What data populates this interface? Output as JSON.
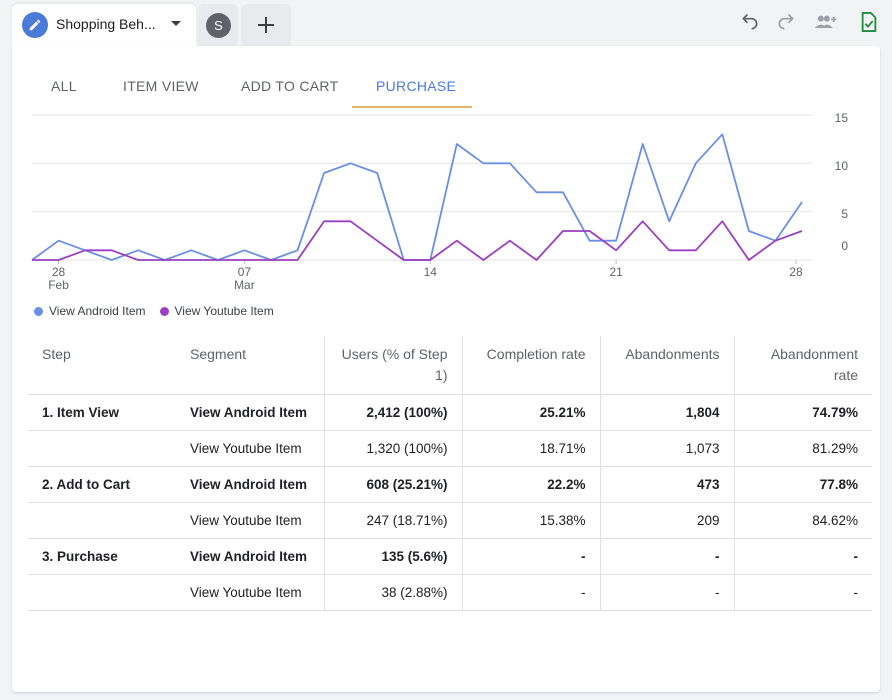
{
  "tabs": {
    "active_title": "Shopping Beh...",
    "secondary_initial": "S"
  },
  "toolbar": {
    "icons": [
      "undo-icon",
      "redo-icon",
      "share-users-icon",
      "save-document-icon"
    ]
  },
  "segment_tabs": [
    {
      "label": "ALL",
      "active": false
    },
    {
      "label": "ITEM VIEW",
      "active": false
    },
    {
      "label": "ADD TO CART",
      "active": false
    },
    {
      "label": "PURCHASE",
      "active": true
    }
  ],
  "colors": {
    "android": "#6a8fe6",
    "youtube": "#9b3fc1",
    "accent": "#4a7bd9",
    "tab_underline": "#e1b46a"
  },
  "chart_data": {
    "type": "line",
    "x_tick_labels": [
      {
        "day": "28",
        "month": "Feb"
      },
      {
        "day": "07",
        "month": "Mar"
      },
      {
        "day": "14",
        "month": ""
      },
      {
        "day": "21",
        "month": ""
      },
      {
        "day": "28",
        "month": ""
      }
    ],
    "y_tick_labels": [
      "15",
      "10",
      "5",
      "0"
    ],
    "ylim": [
      0,
      15
    ],
    "series": [
      {
        "name": "View Android Item",
        "values": [
          0,
          2,
          1,
          0,
          1,
          0,
          1,
          0,
          1,
          0,
          1,
          9,
          10,
          9,
          0,
          0,
          12,
          10,
          10,
          7,
          7,
          2,
          2,
          12,
          4,
          10,
          13,
          3,
          2,
          6
        ]
      },
      {
        "name": "View Youtube Item",
        "values": [
          0,
          0,
          1,
          1,
          0,
          0,
          0,
          0,
          0,
          0,
          0,
          4,
          4,
          2,
          0,
          0,
          2,
          0,
          2,
          0,
          3,
          3,
          1,
          4,
          1,
          1,
          4,
          0,
          2,
          3
        ]
      }
    ],
    "grid": true,
    "legend_position": "bottom-left"
  },
  "table": {
    "headers": [
      "Step",
      "Segment",
      "Users (% of Step 1)",
      "Completion rate",
      "Abandonments",
      "Abandonment rate"
    ],
    "rows": [
      {
        "step": "1. Item View",
        "segment": "View Android Item",
        "users": "2,412 (100%)",
        "completion": "25.21%",
        "abandonments": "1,804",
        "abandon_rate": "74.79%",
        "bold": true
      },
      {
        "step": "",
        "segment": "View Youtube Item",
        "users": "1,320 (100%)",
        "completion": "18.71%",
        "abandonments": "1,073",
        "abandon_rate": "81.29%",
        "bold": false
      },
      {
        "step": "2. Add to Cart",
        "segment": "View Android Item",
        "users": "608 (25.21%)",
        "completion": "22.2%",
        "abandonments": "473",
        "abandon_rate": "77.8%",
        "bold": true
      },
      {
        "step": "",
        "segment": "View Youtube Item",
        "users": "247 (18.71%)",
        "completion": "15.38%",
        "abandonments": "209",
        "abandon_rate": "84.62%",
        "bold": false
      },
      {
        "step": "3. Purchase",
        "segment": "View Android Item",
        "users": "135 (5.6%)",
        "completion": "-",
        "abandonments": "-",
        "abandon_rate": "-",
        "bold": true
      },
      {
        "step": "",
        "segment": "View Youtube Item",
        "users": "38 (2.88%)",
        "completion": "-",
        "abandonments": "-",
        "abandon_rate": "-",
        "bold": false
      }
    ]
  }
}
